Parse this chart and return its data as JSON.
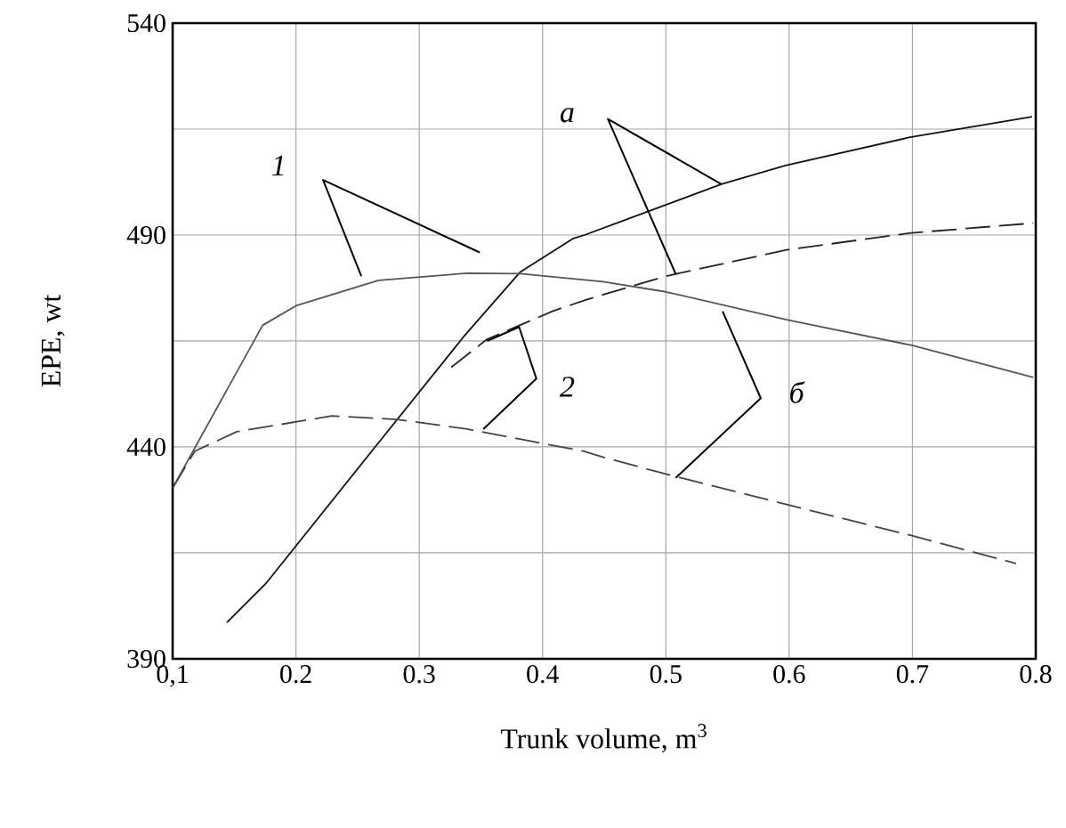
{
  "chart_data": {
    "type": "line",
    "xlabel": "Trunk volume, m$^{3}$",
    "ylabel": "EPE, wt",
    "xlim": [
      0.1,
      0.8
    ],
    "xticks": [
      {
        "value": 0.1,
        "label": "0,1"
      },
      0.2,
      0.3,
      0.4,
      0.5,
      0.6,
      0.7,
      0.8
    ],
    "ylim": [
      390,
      540
    ],
    "yticks": [
      390,
      {
        "value": 415,
        "label": null
      },
      440,
      {
        "value": 465,
        "label": null
      },
      490,
      {
        "value": 515,
        "label": null
      },
      540
    ],
    "grid": true,
    "series": [
      {
        "color": "#111111",
        "line_style": "solid",
        "x": [
          0.144,
          0.176,
          0.267,
          0.336,
          0.382,
          0.425,
          0.435,
          0.545,
          0.597,
          0.697,
          0.797
        ],
        "values": [
          398.6,
          407.9,
          441,
          466,
          481.3,
          489.2,
          490.1,
          502,
          506.4,
          513,
          517.9
        ]
      },
      {
        "color": "#555555",
        "line_style": "solid",
        "x": [
          0.1,
          0.173,
          0.2,
          0.267,
          0.339,
          0.382,
          0.449,
          0.5,
          0.598,
          0.699,
          0.798
        ],
        "values": [
          430.3,
          468.7,
          473.3,
          479.3,
          481,
          480.9,
          479,
          476.6,
          470,
          464,
          456.4
        ]
      },
      {
        "color": "#222222",
        "line_style": "dashed",
        "x": [
          0.326,
          0.355,
          0.408,
          0.435,
          0.5,
          0.598,
          0.699,
          0.798
        ],
        "values": [
          458.8,
          465.4,
          472,
          474.7,
          480.3,
          486.5,
          490.5,
          492.8
        ]
      },
      {
        "color": "#444444",
        "line_style": "dashed",
        "x": [
          0.1,
          0.118,
          0.152,
          0.229,
          0.282,
          0.339,
          0.433,
          0.449,
          0.5,
          0.598,
          0.699,
          0.784
        ],
        "values": [
          430.3,
          439,
          443.6,
          447.3,
          446.5,
          444.2,
          439,
          437.6,
          433.6,
          426.4,
          419.1,
          412.5
        ]
      }
    ],
    "annotations": [
      "1",
      "a",
      "2",
      "б"
    ]
  }
}
